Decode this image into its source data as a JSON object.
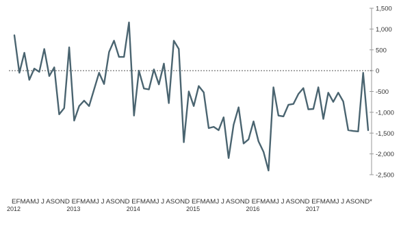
{
  "chart_data": {
    "type": "line",
    "title": "",
    "xlabel": "",
    "ylabel": "",
    "ylim": [
      -2500,
      1500
    ],
    "yticks": [
      1500,
      1000,
      500,
      0,
      -500,
      -1000,
      -1500,
      -2000,
      -2500
    ],
    "ytick_labels": [
      "1,500",
      "1,000",
      "500",
      "0",
      "-500",
      "-1,000",
      "-1,500",
      "-2,000",
      "-2,500"
    ],
    "y_axis_position": "right",
    "zero_line": "dashed",
    "grid": false,
    "legend": "none",
    "colors": {
      "line": "#4a6470",
      "axis": "#999999",
      "text": "#333333"
    },
    "month_axis_text": "EFMAMJ J ASOND EFMAMJ J ASOND EFMAMJ J ASOND EFMAMJ J ASOND EFMAMJ J ASOND EFMAMJ J ASOND*",
    "years": [
      {
        "label": "2012",
        "month": 1
      },
      {
        "label": "2013",
        "month": 13
      },
      {
        "label": "2014",
        "month": 25
      },
      {
        "label": "2015",
        "month": 37
      },
      {
        "label": "2016",
        "month": 49
      },
      {
        "label": "2017",
        "month": 61
      }
    ],
    "x_range": [
      1,
      72
    ],
    "series": [
      {
        "values": [
          850,
          -50,
          430,
          -220,
          50,
          -30,
          520,
          -130,
          80,
          -1050,
          -900,
          560,
          -1200,
          -850,
          -720,
          -850,
          -450,
          -50,
          -320,
          450,
          720,
          330,
          330,
          1160,
          -1080,
          0,
          -430,
          -450,
          30,
          -330,
          170,
          -780,
          720,
          520,
          -1720,
          -500,
          -850,
          -370,
          -520,
          -1380,
          -1350,
          -1430,
          -1120,
          -2100,
          -1300,
          -880,
          -1750,
          -1650,
          -1220,
          -1700,
          -1950,
          -2400,
          -400,
          -1080,
          -1100,
          -820,
          -800,
          -560,
          -420,
          -930,
          -920,
          -400,
          -1160,
          -530,
          -750,
          -530,
          -740,
          -1430,
          -1450,
          -1460,
          -50,
          -1430
        ]
      }
    ]
  }
}
